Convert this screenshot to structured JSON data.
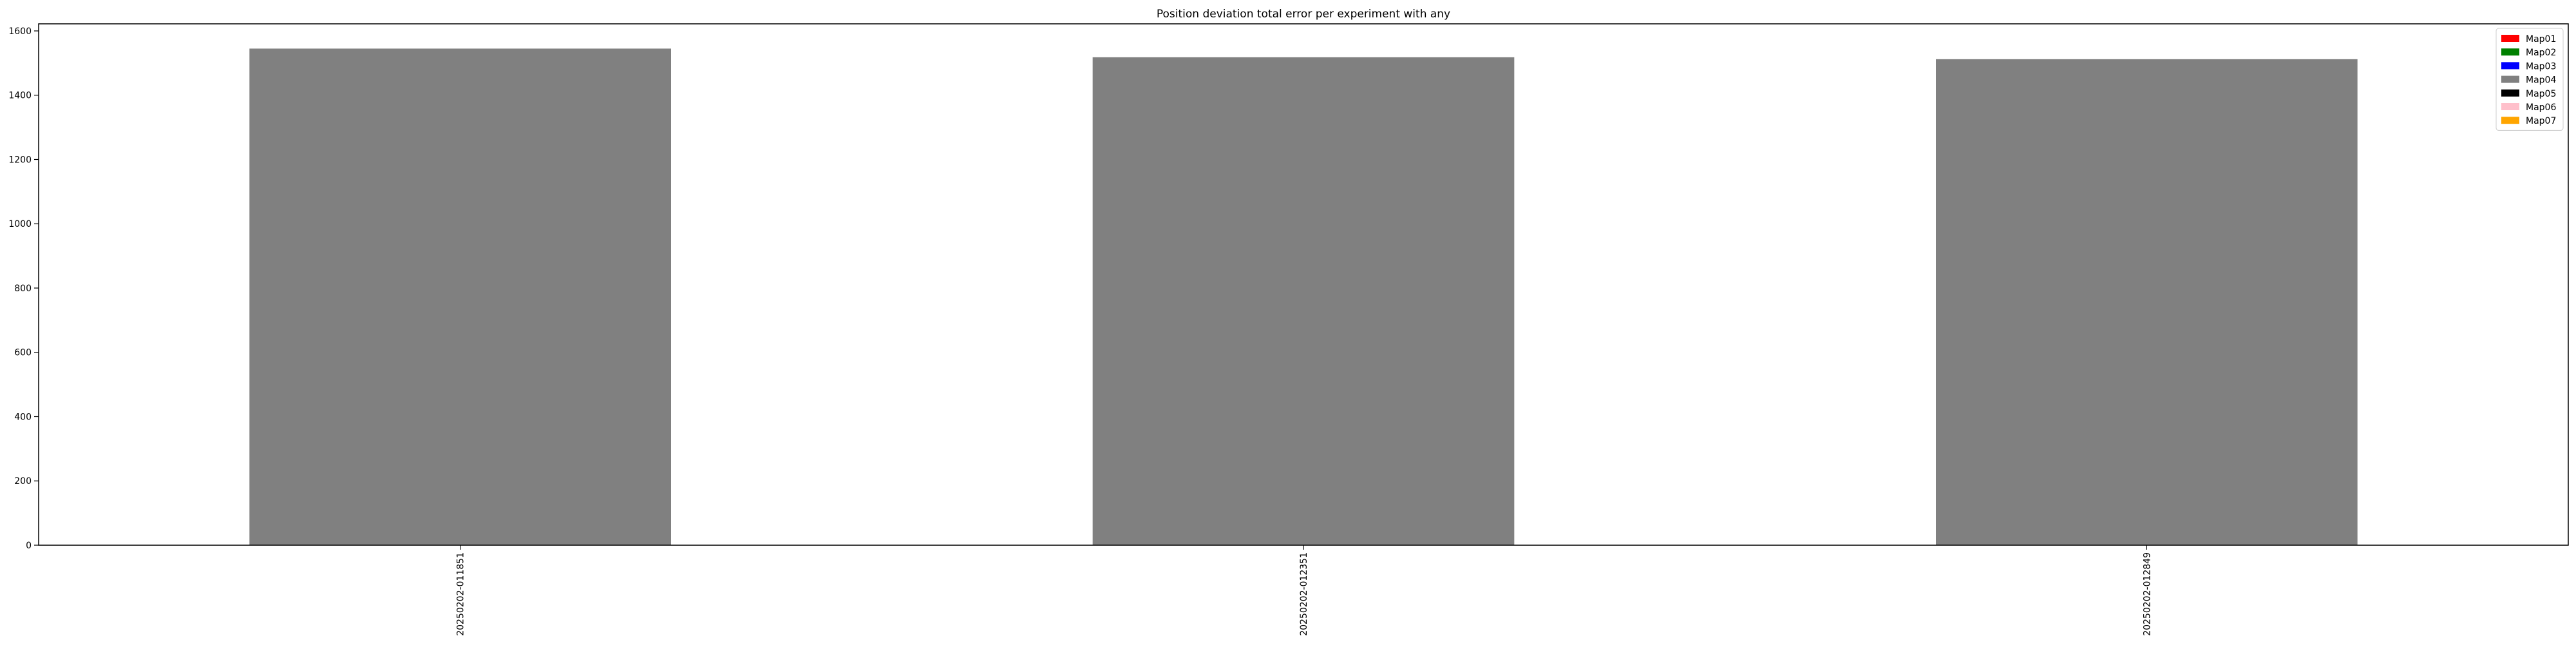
{
  "chart_data": {
    "type": "bar",
    "title": "Position deviation total error per experiment with any",
    "xlabel": "",
    "ylabel": "",
    "categories": [
      "20250202-011851",
      "20250202-012351",
      "20250202-012849"
    ],
    "series": [
      {
        "name": "Map01",
        "color": "#ff0000",
        "values": [
          0,
          0,
          0
        ]
      },
      {
        "name": "Map02",
        "color": "#008000",
        "values": [
          0,
          0,
          0
        ]
      },
      {
        "name": "Map03",
        "color": "#0000ff",
        "values": [
          0,
          0,
          0
        ]
      },
      {
        "name": "Map04",
        "color": "#808080",
        "values": [
          1545,
          1518,
          1512
        ]
      },
      {
        "name": "Map05",
        "color": "#000000",
        "values": [
          0,
          0,
          0
        ]
      },
      {
        "name": "Map06",
        "color": "#ffc0cb",
        "values": [
          0,
          0,
          0
        ]
      },
      {
        "name": "Map07",
        "color": "#ffa500",
        "values": [
          0,
          0,
          0
        ]
      }
    ],
    "stacked": true,
    "ylim": [
      0,
      1622
    ],
    "yticks": [
      0,
      200,
      400,
      600,
      800,
      1000,
      1200,
      1400,
      1600
    ],
    "grid": false,
    "legend_position": "top-right",
    "x_tick_rotation": "vertical"
  }
}
